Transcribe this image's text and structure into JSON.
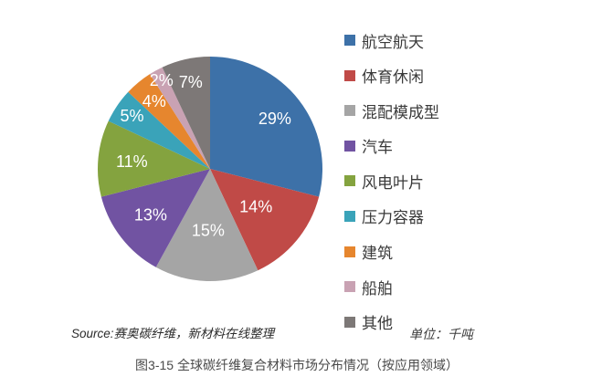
{
  "chart_data": {
    "type": "pie",
    "title": "",
    "categories": [
      "航空航天",
      "体育休闲",
      "混配模成型",
      "汽车",
      "风电叶片",
      "压力容器",
      "建筑",
      "船舶",
      "其他"
    ],
    "values": [
      29,
      14,
      15,
      13,
      11,
      5,
      4,
      2,
      7
    ],
    "labels": [
      "29%",
      "14%",
      "15%",
      "13%",
      "11%",
      "5%",
      "4%",
      "2%",
      "7%"
    ],
    "colors": [
      "#3D71A8",
      "#C04A47",
      "#A5A5A5",
      "#7153A2",
      "#84A33F",
      "#3AA3B9",
      "#E6862E",
      "#C9A2B3",
      "#7D7877"
    ],
    "label_color": "#FFFFFF",
    "legend_position": "right",
    "start_angle_deg": 0,
    "direction": "clockwise",
    "label_radius_ratios": [
      0.73,
      0.53,
      0.55,
      0.67,
      0.7,
      0.84,
      0.78,
      0.9,
      0.79
    ]
  },
  "annotations": {
    "source": "Source:赛奥碳纤维，新材料在线整理",
    "unit": "单位：千吨"
  },
  "caption": "图3-15 全球碳纤维复合材料市场分布情况（按应用领域）"
}
